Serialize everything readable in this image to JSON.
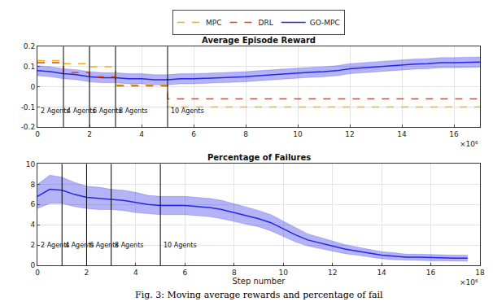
{
  "caption": "Fig. 3: Moving average rewards and percentage of fail",
  "chart_data": [
    {
      "type": "line",
      "title": "Average Episode Reward",
      "legend": "top",
      "grid": true,
      "x_scale_label": "×10⁶",
      "xlim": [
        0,
        17
      ],
      "xticks": [
        0,
        2,
        4,
        6,
        8,
        10,
        12,
        14,
        16
      ],
      "ylim": [
        -0.2,
        0.2
      ],
      "yticks": [
        -0.2,
        -0.1,
        0,
        0.1,
        0.2
      ],
      "phases": [
        {
          "x": 0,
          "label": "2 Agents"
        },
        {
          "x": 1,
          "label": "4 Agents"
        },
        {
          "x": 2,
          "label": "6 Agents"
        },
        {
          "x": 3,
          "label": "8 Agents"
        },
        {
          "x": 5,
          "label": "10 Agents"
        }
      ],
      "series": [
        {
          "name": "GO-MPC",
          "color": "#2626e6",
          "line_style": "solid",
          "x": [
            0,
            0.5,
            1,
            1.5,
            2,
            2.5,
            3,
            3.5,
            4,
            4.5,
            5,
            5.5,
            6,
            6.5,
            7,
            7.5,
            8,
            8.5,
            9,
            9.5,
            10,
            10.5,
            11,
            11.5,
            12,
            12.5,
            13,
            13.5,
            14,
            14.5,
            15,
            15.5,
            16,
            16.5,
            17
          ],
          "values": [
            0.08,
            0.075,
            0.065,
            0.06,
            0.05,
            0.045,
            0.045,
            0.04,
            0.04,
            0.035,
            0.035,
            0.04,
            0.04,
            0.042,
            0.045,
            0.048,
            0.05,
            0.055,
            0.06,
            0.065,
            0.07,
            0.072,
            0.075,
            0.08,
            0.09,
            0.095,
            0.1,
            0.105,
            0.11,
            0.113,
            0.115,
            0.12,
            0.12,
            0.122,
            0.123
          ],
          "upper": [
            0.105,
            0.1,
            0.09,
            0.085,
            0.075,
            0.07,
            0.07,
            0.065,
            0.065,
            0.06,
            0.06,
            0.065,
            0.065,
            0.067,
            0.07,
            0.073,
            0.075,
            0.08,
            0.085,
            0.09,
            0.095,
            0.097,
            0.1,
            0.105,
            0.115,
            0.12,
            0.125,
            0.13,
            0.135,
            0.138,
            0.14,
            0.145,
            0.145,
            0.147,
            0.148
          ],
          "lower": [
            0.055,
            0.05,
            0.04,
            0.035,
            0.025,
            0.02,
            0.02,
            0.015,
            0.015,
            0.01,
            0.01,
            0.015,
            0.015,
            0.017,
            0.02,
            0.023,
            0.025,
            0.03,
            0.035,
            0.04,
            0.045,
            0.047,
            0.05,
            0.055,
            0.065,
            0.07,
            0.075,
            0.08,
            0.085,
            0.088,
            0.09,
            0.095,
            0.095,
            0.097,
            0.098
          ]
        },
        {
          "name": "DRL",
          "color": "#e8401c",
          "line_style": "dash",
          "x": [
            0,
            1,
            1,
            2,
            2,
            3,
            3,
            5,
            5,
            17
          ],
          "values": [
            0.12,
            0.12,
            0.07,
            0.07,
            0.05,
            0.05,
            0.005,
            0.005,
            -0.06,
            -0.06
          ]
        },
        {
          "name": "MPC",
          "color": "#edb120",
          "line_style": "dash",
          "x": [
            0,
            1,
            1,
            2,
            2,
            3,
            3,
            5,
            5,
            17
          ],
          "values": [
            0.13,
            0.13,
            0.115,
            0.115,
            0.1,
            0.1,
            0.01,
            0.01,
            -0.1,
            -0.1
          ]
        }
      ]
    },
    {
      "type": "line",
      "title": "Percentage of Failures",
      "x_label": "Step number",
      "grid": true,
      "x_scale_label": "×10⁶",
      "xlim": [
        0,
        18
      ],
      "xticks": [
        0,
        2,
        4,
        6,
        8,
        10,
        12,
        14,
        16,
        18
      ],
      "ylim": [
        0,
        10
      ],
      "yticks": [
        0,
        2,
        4,
        6,
        8,
        10
      ],
      "phases": [
        {
          "x": 0,
          "label": "2 Agents"
        },
        {
          "x": 1,
          "label": "4 Agents"
        },
        {
          "x": 2,
          "label": "6 Agents"
        },
        {
          "x": 3,
          "label": "8 Agents"
        },
        {
          "x": 5,
          "label": "10 Agents"
        }
      ],
      "series": [
        {
          "name": "GO-MPC",
          "color": "#2626e6",
          "line_style": "solid",
          "x": [
            0,
            0.5,
            1,
            1.5,
            2,
            2.5,
            3,
            3.5,
            4,
            4.5,
            5,
            5.5,
            6,
            6.5,
            7,
            7.5,
            8,
            8.5,
            9,
            9.5,
            10,
            10.5,
            11,
            11.5,
            12,
            12.5,
            13,
            13.5,
            14,
            14.5,
            15,
            15.5,
            16,
            16.5,
            17,
            17.5
          ],
          "values": [
            6.8,
            7.5,
            7.4,
            7.0,
            6.7,
            6.6,
            6.5,
            6.4,
            6.2,
            6.0,
            5.9,
            5.9,
            5.9,
            5.8,
            5.7,
            5.5,
            5.2,
            4.9,
            4.6,
            4.2,
            3.6,
            3.0,
            2.5,
            2.2,
            1.9,
            1.6,
            1.4,
            1.2,
            1.0,
            0.9,
            0.8,
            0.8,
            0.75,
            0.75,
            0.7,
            0.7
          ],
          "upper": [
            8.0,
            8.9,
            8.7,
            8.2,
            7.8,
            7.7,
            7.5,
            7.4,
            7.2,
            6.9,
            6.8,
            6.8,
            6.8,
            6.7,
            6.6,
            6.4,
            6.1,
            5.75,
            5.4,
            5.0,
            4.35,
            3.7,
            3.1,
            2.75,
            2.4,
            2.05,
            1.8,
            1.6,
            1.35,
            1.25,
            1.1,
            1.1,
            1.05,
            1.05,
            1.0,
            1.0
          ],
          "lower": [
            5.6,
            6.1,
            6.1,
            5.8,
            5.6,
            5.5,
            5.5,
            5.4,
            5.2,
            5.1,
            5.0,
            5.0,
            5.0,
            4.9,
            4.8,
            4.6,
            4.3,
            4.05,
            3.8,
            3.4,
            2.85,
            2.3,
            1.9,
            1.65,
            1.4,
            1.15,
            1.0,
            0.8,
            0.65,
            0.55,
            0.5,
            0.5,
            0.45,
            0.45,
            0.4,
            0.4
          ]
        }
      ]
    }
  ]
}
